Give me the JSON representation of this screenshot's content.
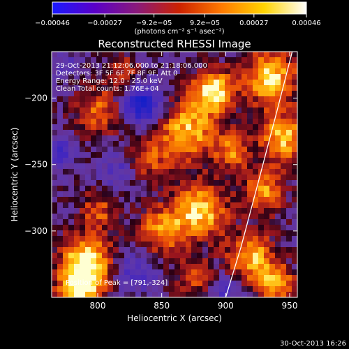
{
  "colorbar": {
    "ticks": [
      "−0.00046",
      "−0.00027",
      "−9.2e−05",
      "9.2e−05",
      "0.00027",
      "0.00046"
    ],
    "tick_values": [
      -0.00046,
      -0.00027,
      -9.2e-05,
      9.2e-05,
      0.00027,
      0.00046
    ],
    "range": [
      -0.00046,
      0.00046
    ],
    "unit_label": "(photons cm⁻² s⁻¹ asec⁻²)",
    "colors": [
      "#1a1aff",
      "#5a00c8",
      "#8a1a7a",
      "#cc2200",
      "#ff7a00",
      "#ffd400",
      "#ffffff"
    ]
  },
  "chart_data": {
    "type": "heatmap",
    "title": "Reconstructed RHESSI Image",
    "xlabel": "Heliocentric X (arcsec)",
    "ylabel": "Heliocentric Y (arcsec)",
    "xlim": [
      764,
      956
    ],
    "ylim": [
      -350,
      -165
    ],
    "xticks": [
      800,
      850,
      900,
      950
    ],
    "yticks": [
      -200,
      -250,
      -300
    ],
    "annotations": [
      "29-Oct-2013 21:12:06.000 to 21:18:06.000",
      "Detectors: 3F 5F 6F 7F 8F 9F, Att 0",
      "Energy Range: 12.0 - 25.0 keV",
      "Clean    Total counts: 1.76E+04"
    ],
    "peak_label": "Position of Peak = [791,-324]",
    "peak": [
      791,
      -324
    ],
    "limb_curve": [
      [
        952,
        -165
      ],
      [
        940,
        -210
      ],
      [
        925,
        -265
      ],
      [
        912,
        -312
      ],
      [
        900,
        -350
      ]
    ],
    "hotspots": [
      {
        "x": 890,
        "y": -195,
        "r": 16,
        "v": 1.0
      },
      {
        "x": 870,
        "y": -225,
        "r": 22,
        "v": 0.8
      },
      {
        "x": 800,
        "y": -210,
        "r": 18,
        "v": 0.55
      },
      {
        "x": 840,
        "y": -245,
        "r": 16,
        "v": 0.45
      },
      {
        "x": 880,
        "y": -285,
        "r": 20,
        "v": 0.9
      },
      {
        "x": 850,
        "y": -300,
        "r": 18,
        "v": 0.7
      },
      {
        "x": 800,
        "y": -285,
        "r": 14,
        "v": 0.5
      },
      {
        "x": 791,
        "y": -324,
        "r": 20,
        "v": 1.0
      },
      {
        "x": 785,
        "y": -345,
        "r": 16,
        "v": 0.85
      },
      {
        "x": 935,
        "y": -185,
        "r": 20,
        "v": 0.9
      },
      {
        "x": 945,
        "y": -230,
        "r": 18,
        "v": 0.85
      },
      {
        "x": 930,
        "y": -270,
        "r": 16,
        "v": 0.7
      },
      {
        "x": 905,
        "y": -240,
        "r": 14,
        "v": 0.6
      },
      {
        "x": 920,
        "y": -320,
        "r": 18,
        "v": 0.8
      },
      {
        "x": 940,
        "y": -340,
        "r": 14,
        "v": 0.75
      },
      {
        "x": 875,
        "y": -335,
        "r": 14,
        "v": 0.5
      },
      {
        "x": 820,
        "y": -180,
        "r": 12,
        "v": 0.4
      }
    ],
    "coldspots": [
      {
        "x": 835,
        "y": -205,
        "r": 14,
        "v": -1.0
      },
      {
        "x": 770,
        "y": -240,
        "r": 12,
        "v": -0.5
      },
      {
        "x": 815,
        "y": -255,
        "r": 12,
        "v": -0.4
      },
      {
        "x": 830,
        "y": -330,
        "r": 16,
        "v": -0.45
      },
      {
        "x": 900,
        "y": -345,
        "r": 12,
        "v": -0.4
      },
      {
        "x": 775,
        "y": -175,
        "r": 10,
        "v": -0.3
      }
    ]
  },
  "footer_timestamp": "30-Oct-2013 16:26"
}
